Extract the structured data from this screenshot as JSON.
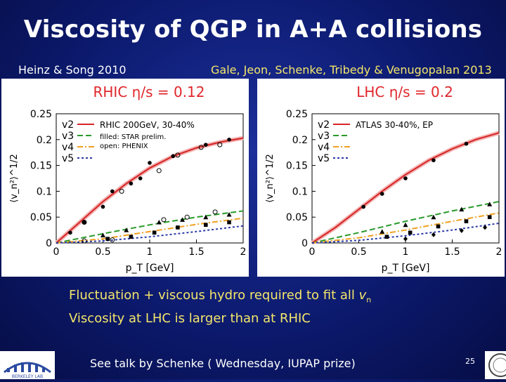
{
  "slide": {
    "title": "Viscosity of QGP in A+A collisions",
    "ref_left": "Heinz & Song 2010",
    "ref_right": "Gale, Jeon, Schenke, Tribedy & Venugopalan 2013",
    "bullet1_text": "Fluctuation + viscous hydro required to fit all ",
    "bullet1_var": "v",
    "bullet1_sub": "n",
    "bullet2": "Viscosity at LHC is larger than at RHIC",
    "talk": "See talk by Schenke ( Wednesday, IUPAP prize)",
    "page_number": "25",
    "logo_left_text": "BERKELEY LAB"
  },
  "chart_data": [
    {
      "type": "line",
      "heading": "RHIC η/s = 0.12",
      "heading_color": "#e0262b",
      "xlabel": "p_T [GeV]",
      "ylabel": "⟨v_n²⟩^1/2",
      "xlim": [
        0,
        2
      ],
      "ylim": [
        0,
        0.25
      ],
      "xticks": [
        "0",
        "0.5",
        "1",
        "1.5",
        "2"
      ],
      "yticks": [
        "0",
        "0.05",
        "0.1",
        "0.15",
        "0.2",
        "0.25"
      ],
      "legend_title": "RHIC 200GeV, 30-40%",
      "legend_notes": [
        "filled: STAR prelim.",
        "open: PHENIX"
      ],
      "legend_position": "top-left",
      "series": [
        {
          "name": "v2",
          "color": "#d62424",
          "dash": "solid",
          "x": [
            0,
            0.25,
            0.5,
            0.75,
            1.0,
            1.25,
            1.5,
            1.75,
            2.0
          ],
          "y": [
            0,
            0.04,
            0.08,
            0.115,
            0.145,
            0.168,
            0.184,
            0.195,
            0.203
          ]
        },
        {
          "name": "v3",
          "color": "#2a9a2a",
          "dash": "long",
          "x": [
            0,
            0.5,
            1.0,
            1.5,
            2.0
          ],
          "y": [
            0,
            0.018,
            0.035,
            0.05,
            0.062
          ]
        },
        {
          "name": "v4",
          "color": "#f0a020",
          "dash": "dashdot",
          "x": [
            0,
            0.5,
            1.0,
            1.5,
            2.0
          ],
          "y": [
            0,
            0.008,
            0.022,
            0.036,
            0.048
          ]
        },
        {
          "name": "v5",
          "color": "#2a3aa8",
          "dash": "short",
          "x": [
            0,
            0.5,
            1.0,
            1.5,
            2.0
          ],
          "y": [
            0,
            0.004,
            0.012,
            0.022,
            0.033
          ]
        }
      ],
      "points": [
        {
          "x": 0.15,
          "y": 0.02,
          "m": "dot"
        },
        {
          "x": 0.3,
          "y": 0.04,
          "m": "dot"
        },
        {
          "x": 0.5,
          "y": 0.07,
          "m": "dot"
        },
        {
          "x": 0.6,
          "y": 0.1,
          "m": "dot"
        },
        {
          "x": 0.8,
          "y": 0.115,
          "m": "dot"
        },
        {
          "x": 0.9,
          "y": 0.125,
          "m": "dot"
        },
        {
          "x": 1.0,
          "y": 0.155,
          "m": "dot"
        },
        {
          "x": 1.25,
          "y": 0.168,
          "m": "dot"
        },
        {
          "x": 1.6,
          "y": 0.19,
          "m": "dot"
        },
        {
          "x": 1.85,
          "y": 0.2,
          "m": "dot"
        },
        {
          "x": 0.3,
          "y": 0.04,
          "m": "ring"
        },
        {
          "x": 0.7,
          "y": 0.1,
          "m": "ring"
        },
        {
          "x": 1.1,
          "y": 0.14,
          "m": "ring"
        },
        {
          "x": 1.3,
          "y": 0.17,
          "m": "ring"
        },
        {
          "x": 1.55,
          "y": 0.185,
          "m": "ring"
        },
        {
          "x": 1.75,
          "y": 0.19,
          "m": "ring"
        },
        {
          "x": 0.5,
          "y": 0.015,
          "m": "tri"
        },
        {
          "x": 0.75,
          "y": 0.025,
          "m": "tri"
        },
        {
          "x": 1.1,
          "y": 0.04,
          "m": "tri"
        },
        {
          "x": 1.35,
          "y": 0.045,
          "m": "tri"
        },
        {
          "x": 1.6,
          "y": 0.05,
          "m": "tri"
        },
        {
          "x": 1.85,
          "y": 0.055,
          "m": "tri"
        },
        {
          "x": 0.55,
          "y": 0.008,
          "m": "sq"
        },
        {
          "x": 0.8,
          "y": 0.012,
          "m": "sq"
        },
        {
          "x": 1.05,
          "y": 0.02,
          "m": "sq"
        },
        {
          "x": 1.3,
          "y": 0.03,
          "m": "sq"
        },
        {
          "x": 1.6,
          "y": 0.035,
          "m": "sq"
        },
        {
          "x": 1.85,
          "y": 0.04,
          "m": "sq"
        },
        {
          "x": 0.3,
          "y": 0.004,
          "m": "ring"
        },
        {
          "x": 0.6,
          "y": 0.006,
          "m": "ring"
        },
        {
          "x": 1.15,
          "y": 0.045,
          "m": "ring"
        },
        {
          "x": 1.4,
          "y": 0.05,
          "m": "ring"
        },
        {
          "x": 1.7,
          "y": 0.06,
          "m": "ring"
        }
      ]
    },
    {
      "type": "line",
      "heading": "LHC η/s = 0.2",
      "heading_color": "#e0262b",
      "xlabel": "p_T [GeV]",
      "ylabel": "⟨v_n²⟩^1/2",
      "xlim": [
        0,
        2
      ],
      "ylim": [
        0,
        0.25
      ],
      "xticks": [
        "0",
        "0.5",
        "1",
        "1.5",
        "2"
      ],
      "yticks": [
        "0",
        "0.05",
        "0.1",
        "0.15",
        "0.2",
        "0.25"
      ],
      "legend_title": "ATLAS 30-40%, EP",
      "legend_notes": [],
      "legend_position": "top-left",
      "series": [
        {
          "name": "v2",
          "color": "#d62424",
          "dash": "solid",
          "x": [
            0,
            0.25,
            0.5,
            0.75,
            1.0,
            1.25,
            1.5,
            1.75,
            2.0
          ],
          "y": [
            0,
            0.03,
            0.065,
            0.1,
            0.132,
            0.16,
            0.182,
            0.2,
            0.213
          ]
        },
        {
          "name": "v3",
          "color": "#2a9a2a",
          "dash": "long",
          "x": [
            0,
            0.5,
            1.0,
            1.5,
            2.0
          ],
          "y": [
            0,
            0.02,
            0.042,
            0.062,
            0.08
          ]
        },
        {
          "name": "v4",
          "color": "#f0a020",
          "dash": "dashdot",
          "x": [
            0,
            0.5,
            1.0,
            1.5,
            2.0
          ],
          "y": [
            0,
            0.01,
            0.025,
            0.042,
            0.058
          ]
        },
        {
          "name": "v5",
          "color": "#2a3aa8",
          "dash": "short",
          "x": [
            0,
            0.5,
            1.0,
            1.5,
            2.0
          ],
          "y": [
            0,
            0.005,
            0.014,
            0.025,
            0.038
          ]
        }
      ],
      "points": [
        {
          "x": 0.55,
          "y": 0.07,
          "m": "dot"
        },
        {
          "x": 0.75,
          "y": 0.095,
          "m": "dot"
        },
        {
          "x": 1.0,
          "y": 0.125,
          "m": "dot"
        },
        {
          "x": 1.3,
          "y": 0.16,
          "m": "dot"
        },
        {
          "x": 1.65,
          "y": 0.192,
          "m": "dot"
        },
        {
          "x": 0.75,
          "y": 0.022,
          "m": "tri"
        },
        {
          "x": 1.0,
          "y": 0.035,
          "m": "tri"
        },
        {
          "x": 1.3,
          "y": 0.05,
          "m": "tri"
        },
        {
          "x": 1.6,
          "y": 0.065,
          "m": "tri"
        },
        {
          "x": 1.9,
          "y": 0.075,
          "m": "tri"
        },
        {
          "x": 0.8,
          "y": 0.012,
          "m": "sq"
        },
        {
          "x": 1.05,
          "y": 0.02,
          "m": "sq"
        },
        {
          "x": 1.35,
          "y": 0.032,
          "m": "sq"
        },
        {
          "x": 1.65,
          "y": 0.042,
          "m": "sq"
        },
        {
          "x": 1.9,
          "y": 0.05,
          "m": "sq"
        },
        {
          "x": 1.0,
          "y": 0.008,
          "m": "dia"
        },
        {
          "x": 1.3,
          "y": 0.016,
          "m": "dia"
        },
        {
          "x": 1.6,
          "y": 0.024,
          "m": "dia"
        },
        {
          "x": 1.85,
          "y": 0.03,
          "m": "dia"
        }
      ]
    }
  ]
}
